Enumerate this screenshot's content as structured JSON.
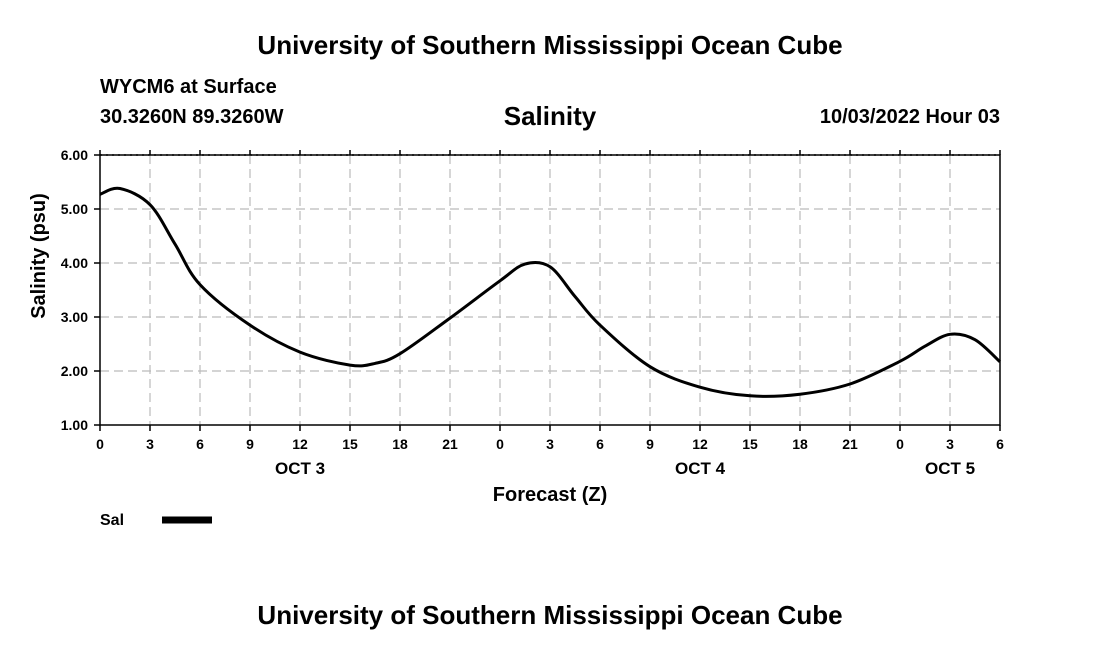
{
  "header": {
    "top_title": "University of Southern Mississippi Ocean Cube",
    "station": "WYCM6 at Surface",
    "coords": "30.3260N  89.3260W",
    "valid_time": "10/03/2022 Hour 03",
    "bottom_title": "University of Southern Mississippi Ocean Cube"
  },
  "chart_data": {
    "type": "line",
    "title": "Salinity",
    "xlabel": "Forecast (Z)",
    "ylabel": "Salinity (psu)",
    "ylim": [
      1.0,
      6.0
    ],
    "yticks": [
      "1.00",
      "2.00",
      "3.00",
      "4.00",
      "5.00",
      "6.00"
    ],
    "xlim": [
      0,
      54
    ],
    "xticks": [
      "0",
      "3",
      "6",
      "9",
      "12",
      "15",
      "18",
      "21",
      "0",
      "3",
      "6",
      "9",
      "12",
      "15",
      "18",
      "21",
      "0",
      "3",
      "6"
    ],
    "day_labels": [
      {
        "label": "OCT 3",
        "at_hour": 12
      },
      {
        "label": "OCT 4",
        "at_hour": 36
      },
      {
        "label": "OCT 5",
        "at_hour": 51
      }
    ],
    "grid": true,
    "legend": {
      "placement": "bottom-left",
      "entries": [
        {
          "label": "Sal",
          "color": "#000000"
        }
      ]
    },
    "series": [
      {
        "name": "Sal",
        "color": "#000000",
        "x": [
          0,
          1.2,
          3,
          4.5,
          6,
          9,
          12,
          15,
          16.5,
          18,
          21,
          24,
          25.5,
          27,
          28.5,
          30,
          33,
          36,
          39,
          42,
          45,
          48,
          49.5,
          51,
          52.5,
          54
        ],
        "y": [
          5.27,
          5.38,
          5.08,
          4.35,
          3.6,
          2.85,
          2.35,
          2.11,
          2.14,
          2.32,
          2.98,
          3.67,
          3.98,
          3.93,
          3.38,
          2.85,
          2.08,
          1.7,
          1.54,
          1.57,
          1.76,
          2.18,
          2.46,
          2.68,
          2.58,
          2.17
        ]
      }
    ]
  }
}
